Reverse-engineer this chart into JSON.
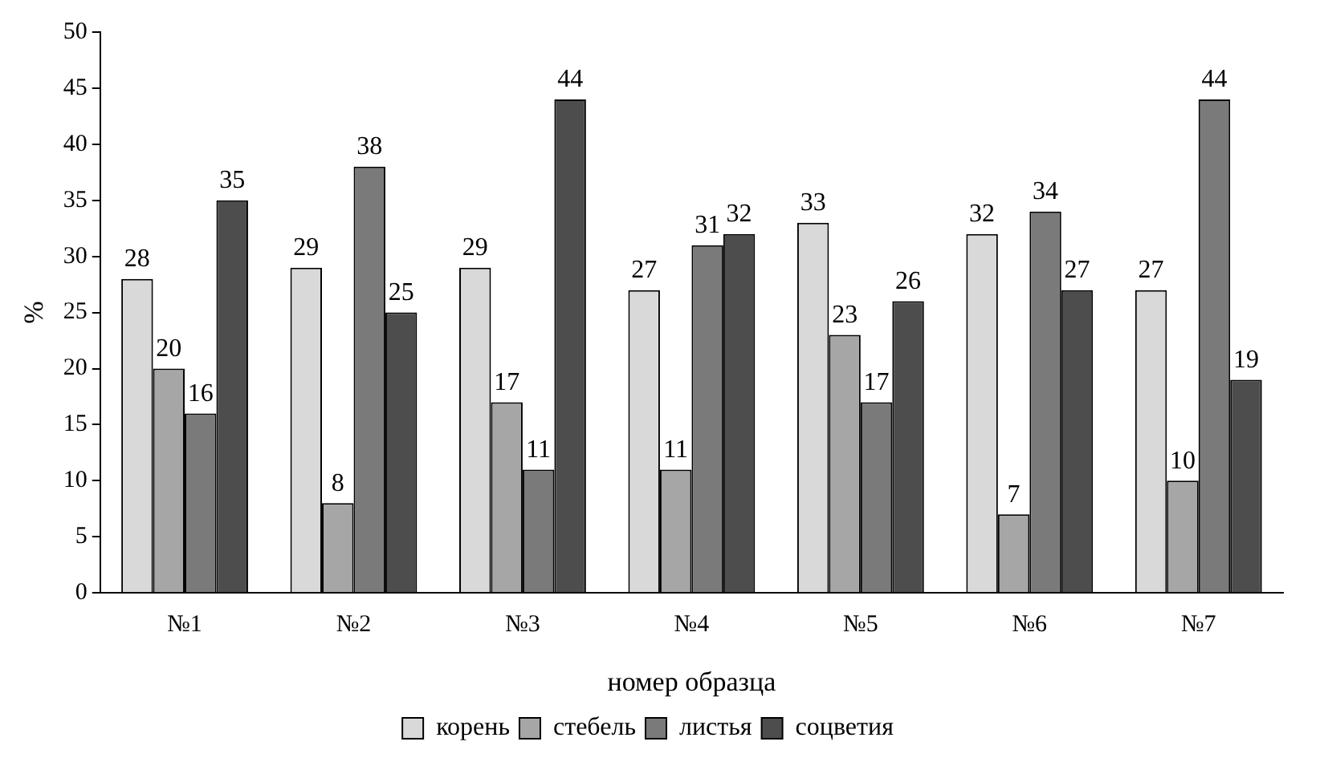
{
  "chart_data": {
    "type": "bar",
    "xlabel": "номер образца",
    "ylabel": "%",
    "categories": [
      "№1",
      "№2",
      "№3",
      "№4",
      "№5",
      "№6",
      "№7"
    ],
    "series": [
      {
        "name": "корень",
        "color": "#d9d9d9",
        "values": [
          28,
          29,
          29,
          27,
          33,
          32,
          27
        ]
      },
      {
        "name": "стебель",
        "color": "#a6a6a6",
        "values": [
          20,
          8,
          17,
          11,
          23,
          7,
          10
        ]
      },
      {
        "name": "листья",
        "color": "#7a7a7a",
        "values": [
          16,
          38,
          11,
          31,
          17,
          34,
          44
        ]
      },
      {
        "name": "соцветия",
        "color": "#4d4d4d",
        "values": [
          35,
          25,
          44,
          32,
          26,
          27,
          19
        ]
      }
    ],
    "ylim": [
      0,
      50
    ],
    "yticks": [
      0,
      5,
      10,
      15,
      20,
      25,
      30,
      35,
      40,
      45,
      50
    ],
    "grid": false,
    "legend": "bottom",
    "data_labels": true
  }
}
